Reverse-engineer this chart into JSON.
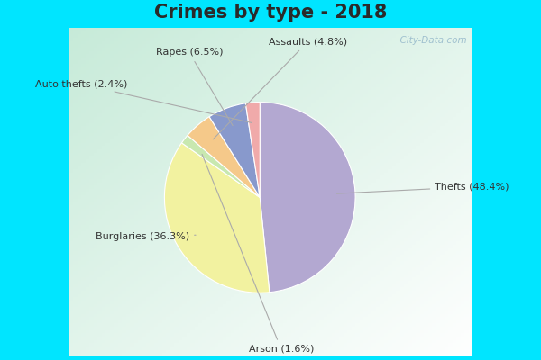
{
  "title": "Crimes by type - 2018",
  "title_fontsize": 15,
  "title_fontweight": "bold",
  "title_color": "#2a2a2a",
  "labels": [
    "Thefts",
    "Burglaries",
    "Arson",
    "Assaults",
    "Rapes",
    "Auto thefts"
  ],
  "values": [
    48.4,
    36.3,
    1.6,
    4.8,
    6.5,
    2.4
  ],
  "colors": [
    "#b3a8d1",
    "#f2f2a0",
    "#c8e8b0",
    "#f5c98a",
    "#8899cc",
    "#f0aaaa"
  ],
  "label_texts": [
    "Thefts (48.4%)",
    "Burglaries (36.3%)",
    "Arson (1.6%)",
    "Assaults (4.8%)",
    "Rapes (6.5%)",
    "Auto thefts (2.4%)"
  ],
  "border_color": "#00e5ff",
  "border_width": 8,
  "startangle": 90,
  "watermark": "  City-Data.com",
  "watermark_color": "#99bbcc",
  "label_color": "#333333",
  "label_fontsize": 8,
  "line_color": "#aaaaaa"
}
